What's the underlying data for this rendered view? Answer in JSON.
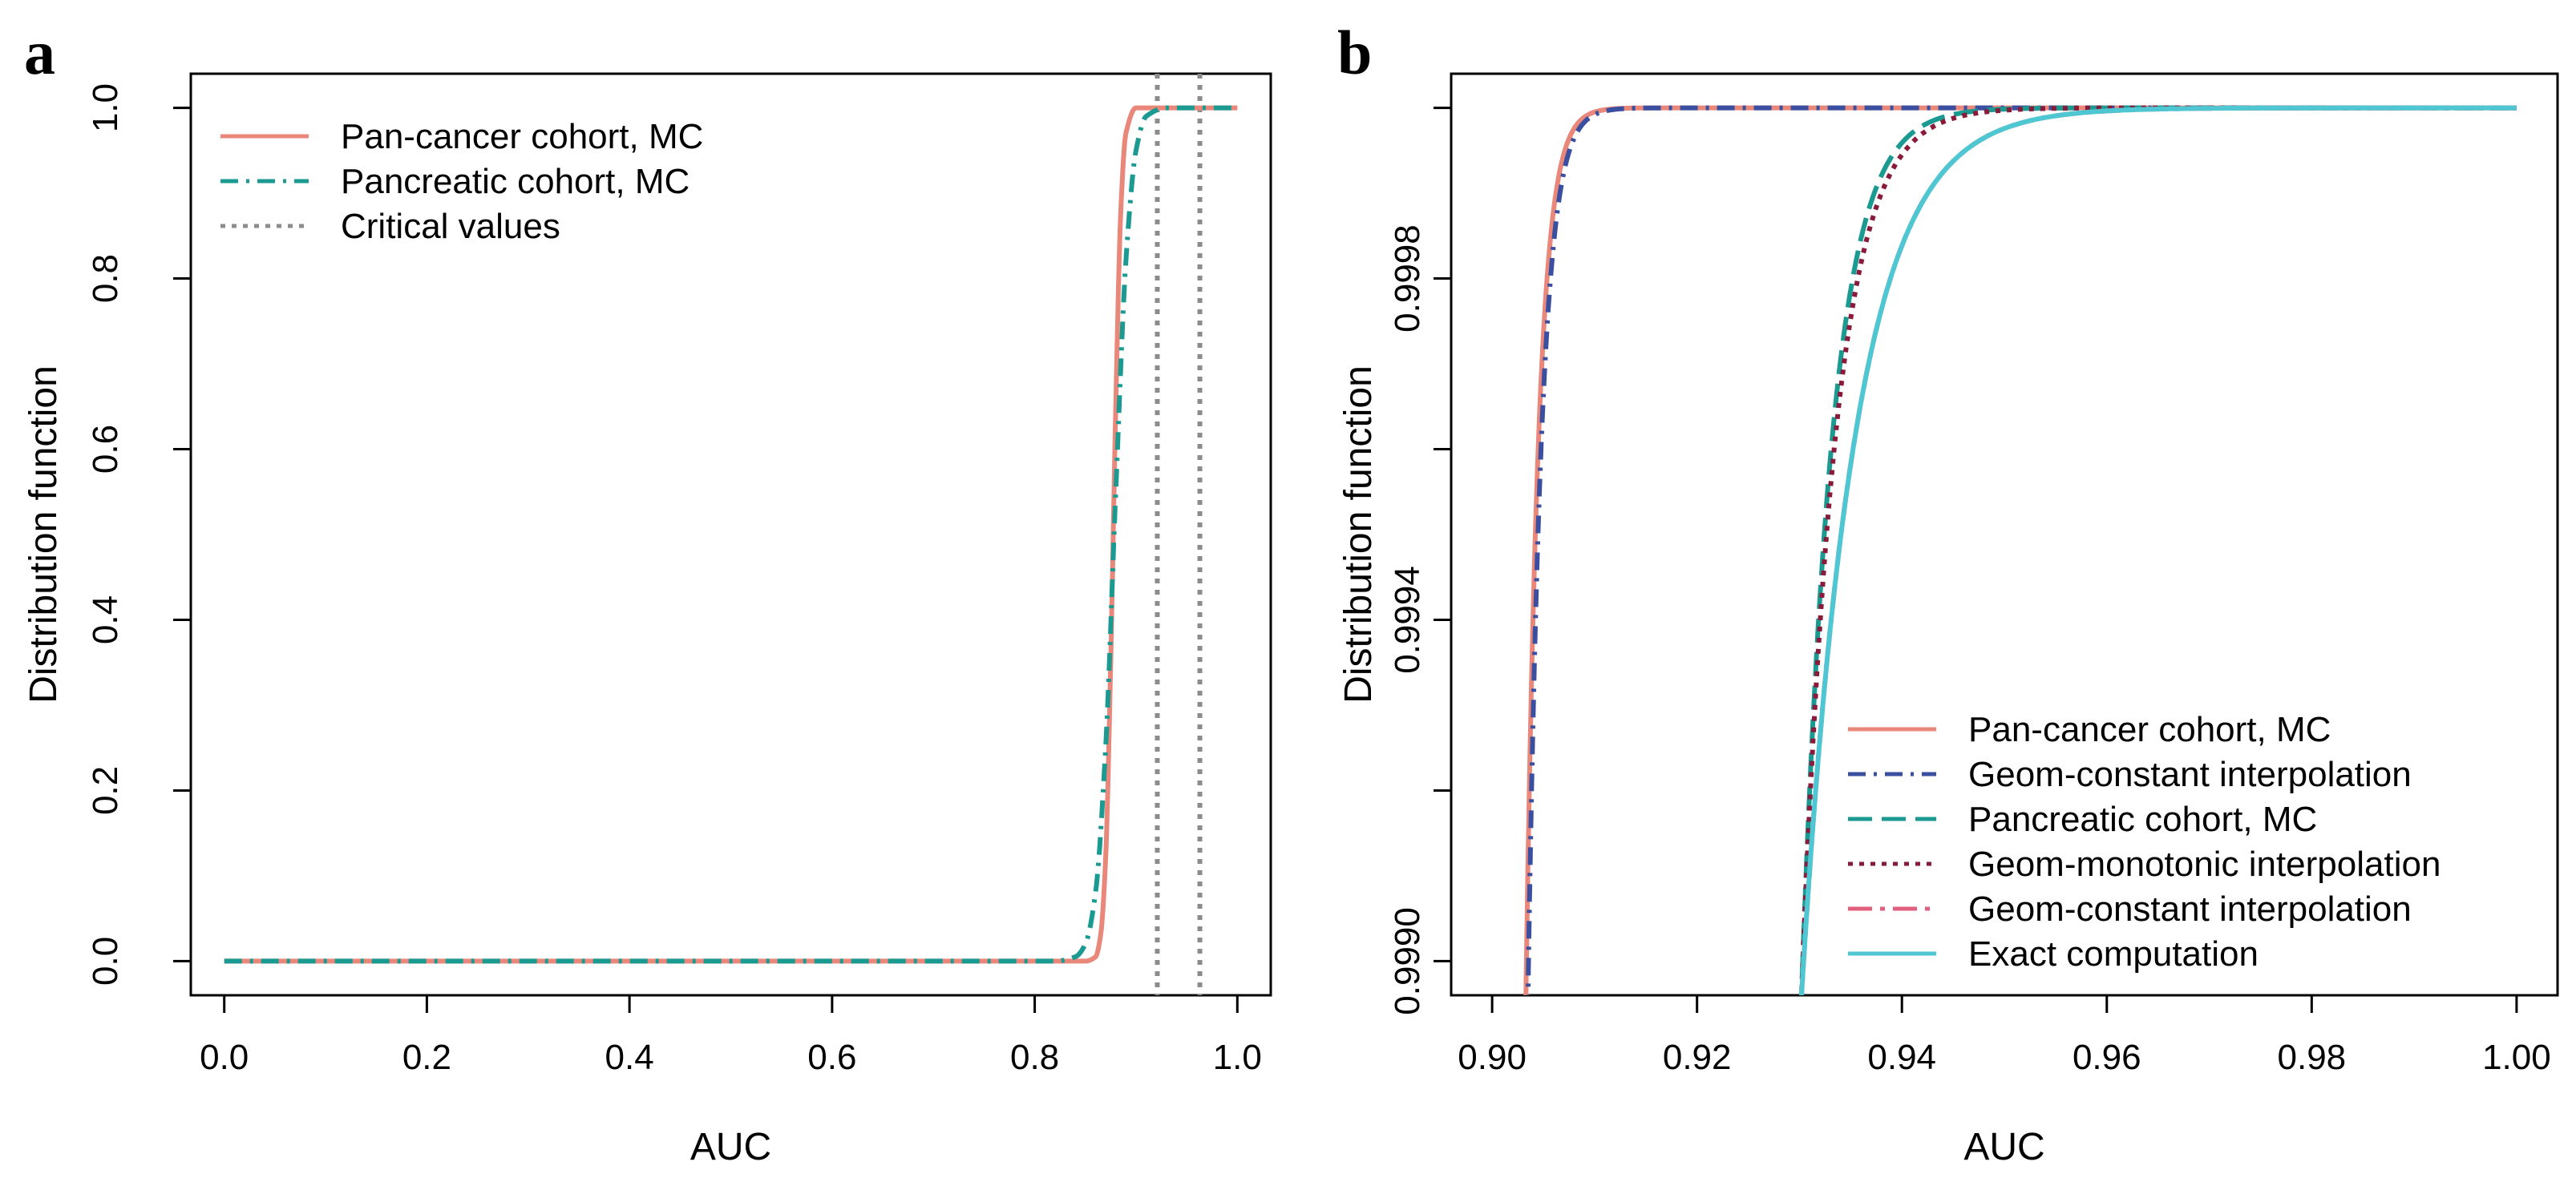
{
  "chart_data": [
    {
      "panel": "a",
      "type": "line",
      "xlabel": "AUC",
      "ylabel": "Distribution function",
      "xlim": [
        0.0,
        1.0
      ],
      "ylim": [
        0.0,
        1.0
      ],
      "xticks": [
        "0.0",
        "0.2",
        "0.4",
        "0.6",
        "0.8",
        "1.0"
      ],
      "yticks": [
        "0.0",
        "0.2",
        "0.4",
        "0.6",
        "0.8",
        "1.0"
      ],
      "legend_position": "top-left",
      "series": [
        {
          "name": "Pan-cancer cohort, MC",
          "color": "#E8877A",
          "dash": "solid",
          "x": [
            0.0,
            0.85,
            0.86,
            0.865,
            0.87,
            0.875,
            0.88,
            0.885,
            0.89,
            0.9,
            1.0
          ],
          "y": [
            0.0,
            0.0,
            0.005,
            0.03,
            0.12,
            0.35,
            0.65,
            0.88,
            0.97,
            1.0,
            1.0
          ]
        },
        {
          "name": "Pancreatic cohort, MC",
          "color": "#1A9A91",
          "dash": "dashdot",
          "x": [
            0.0,
            0.82,
            0.84,
            0.85,
            0.86,
            0.87,
            0.88,
            0.89,
            0.9,
            0.91,
            0.93,
            1.0
          ],
          "y": [
            0.0,
            0.0,
            0.005,
            0.02,
            0.08,
            0.25,
            0.55,
            0.82,
            0.95,
            0.99,
            1.0,
            1.0
          ]
        }
      ],
      "vlines": {
        "name": "Critical values",
        "color": "#8C8C8C",
        "dash": "dotted",
        "x": [
          0.921,
          0.963
        ]
      }
    },
    {
      "panel": "b",
      "type": "line",
      "xlabel": "AUC",
      "ylabel": "Distribution function",
      "xlim": [
        0.9,
        1.0
      ],
      "ylim": [
        0.999,
        1.0
      ],
      "xticks": [
        "0.90",
        "0.92",
        "0.94",
        "0.96",
        "0.98",
        "1.00"
      ],
      "yticks": [
        "0.9990",
        "0.9994",
        "0.9998"
      ],
      "legend_position": "bottom-right",
      "series": [
        {
          "name": "Pan-cancer cohort, MC",
          "color": "#E8877A",
          "dash": "solid",
          "x0": 0.9033,
          "rate": 800,
          "xmax": 1.0
        },
        {
          "name": "Geom-constant interpolation",
          "color": "#3A4FA0",
          "dash": "dashdot",
          "x0": 0.9035,
          "rate": 750,
          "xmax": 1.0
        },
        {
          "name": "Pancreatic cohort, MC",
          "color": "#1A9A91",
          "dash": "longdash",
          "x0": 0.9302,
          "rate": 330,
          "xmax": 1.0
        },
        {
          "name": "Geom-monotonic interpolation",
          "color": "#8A1A3A",
          "dash": "dotted",
          "x0": 0.9302,
          "rate": 300,
          "xmax": 1.0
        },
        {
          "name": "Geom-constant interpolation",
          "color": "#E0607E",
          "dash": "dashdot2",
          "x0": 0.9302,
          "rate": 190,
          "xmax": 1.0
        },
        {
          "name": "Exact computation",
          "color": "#4FC7D3",
          "dash": "solid",
          "x0": 0.9302,
          "rate": 190,
          "xmax": 1.0
        }
      ]
    }
  ],
  "panel_labels": {
    "a": "a",
    "b": "b"
  }
}
